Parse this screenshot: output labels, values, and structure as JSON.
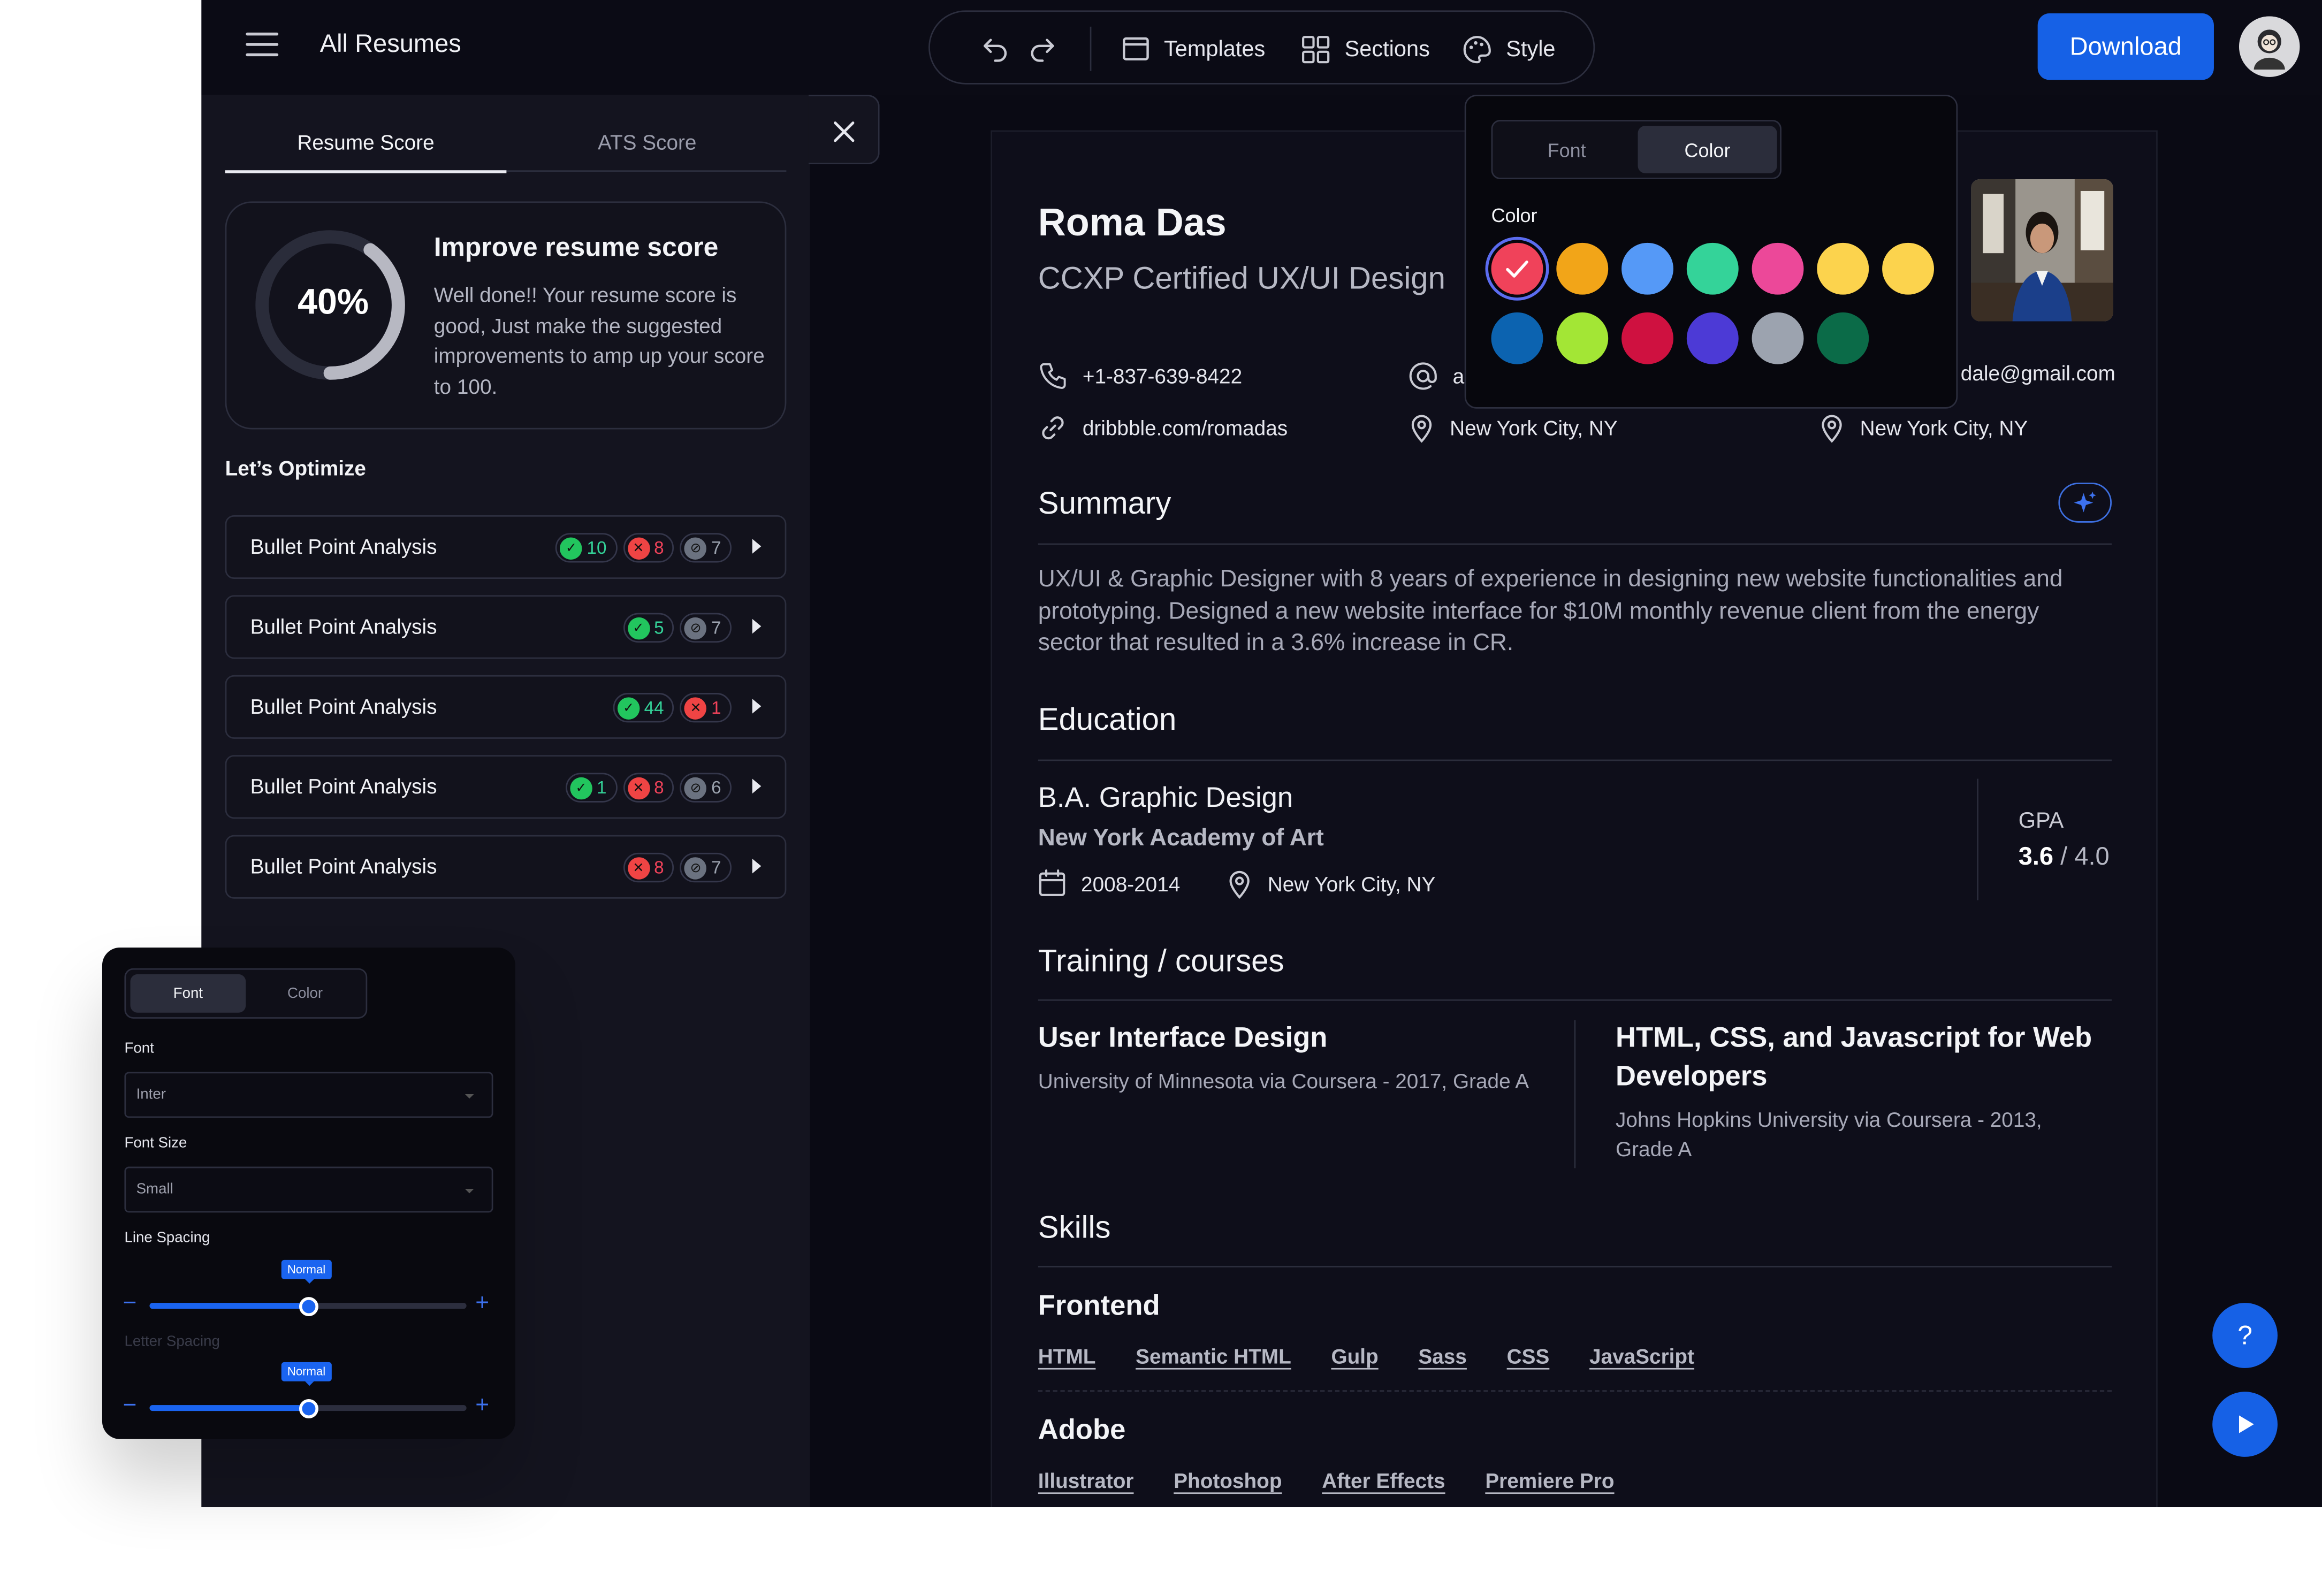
{
  "header": {
    "title": "All Resumes",
    "toolbar": {
      "templates": "Templates",
      "sections": "Sections",
      "style": "Style"
    },
    "download_label": "Download"
  },
  "left_panel": {
    "tabs": [
      "Resume Score",
      "ATS Score"
    ],
    "active_tab": "Resume Score",
    "score": {
      "percent_label": "40%",
      "value": 0.4,
      "title": "Improve resume score",
      "description": "Well done!! Your resume score is good, Just make the suggested improvements to amp up your score to 100."
    },
    "optimize_label": "Let’s Optimize",
    "analyses": [
      {
        "label": "Bullet Point Analysis",
        "badges": [
          {
            "type": "check",
            "count": "10"
          },
          {
            "type": "cross",
            "count": "8"
          },
          {
            "type": "block",
            "count": "7"
          }
        ]
      },
      {
        "label": "Bullet Point Analysis",
        "badges": [
          {
            "type": "check",
            "count": "5"
          },
          {
            "type": "block",
            "count": "7"
          }
        ]
      },
      {
        "label": "Bullet Point Analysis",
        "badges": [
          {
            "type": "check",
            "count": "44"
          },
          {
            "type": "cross",
            "count": "1"
          }
        ]
      },
      {
        "label": "Bullet Point Analysis",
        "badges": [
          {
            "type": "check",
            "count": "1"
          },
          {
            "type": "cross",
            "count": "8"
          },
          {
            "type": "block",
            "count": "6"
          }
        ]
      },
      {
        "label": "Bullet Point Analysis",
        "badges": [
          {
            "type": "cross",
            "count": "8"
          },
          {
            "type": "block",
            "count": "7"
          }
        ]
      }
    ]
  },
  "resume": {
    "name": "Roma Das",
    "role": "CCXP Certified UX/UI Design",
    "contacts": {
      "phone": "+1-837-639-8422",
      "email_left": "al",
      "email_right": "dale@gmail.com",
      "website": "dribbble.com/romadas",
      "location_1": "New York City, NY",
      "location_2": "New York City, NY"
    },
    "summary_heading": "Summary",
    "summary_text": "UX/UI & Graphic Designer with 8 years of experience in designing new website functionalities and prototyping. Designed a new website interface for $10M monthly revenue client from the energy sector that resulted in a 3.6% increase in CR.",
    "education_heading": "Education",
    "education": {
      "degree": "B.A. Graphic Design",
      "school": "New York Academy of Art",
      "years": "2008-2014",
      "location": "New York City, NY",
      "gpa_label": "GPA",
      "gpa_value": "3.6",
      "gpa_max": " / 4.0"
    },
    "training_heading": "Training / courses",
    "courses": [
      {
        "title": "User Interface Design",
        "detail": "University of Minnesota via Coursera - 2017, Grade A"
      },
      {
        "title": "HTML, CSS, and Javascript for Web Developers",
        "detail": "Johns Hopkins University via Coursera - 2013, Grade A"
      }
    ],
    "skills_heading": "Skills",
    "skill_groups": [
      {
        "name": "Frontend",
        "items": [
          "HTML",
          "Semantic HTML",
          "Gulp",
          "Sass",
          "CSS",
          "JavaScript"
        ]
      },
      {
        "name": "Adobe",
        "items": [
          "Illustrator",
          "Photoshop",
          "After Effects",
          "Premiere Pro"
        ]
      }
    ]
  },
  "color_popover": {
    "tabs": [
      "Font",
      "Color"
    ],
    "active_tab": "Color",
    "label": "Color",
    "swatches": [
      "#f0425a",
      "#f2a518",
      "#5599f7",
      "#34d399",
      "#ec4899",
      "#fcd34d",
      "#fcd34d",
      "#0c63b0",
      "#a3e635",
      "#cf1140",
      "#4c3ad6",
      "#9ca3af",
      "#0b6b48"
    ],
    "selected_index": 0
  },
  "font_popover": {
    "tabs": [
      "Font",
      "Color"
    ],
    "active_tab": "Font",
    "font_label": "Font",
    "font_value": "Inter",
    "size_label": "Font Size",
    "size_value": "Small",
    "line_spacing_label": "Line Spacing",
    "line_spacing_tip": "Normal",
    "line_spacing_level": 0.5,
    "letter_spacing_label": "Letter Spacing",
    "letter_spacing_tip": "Normal",
    "letter_spacing_level": 0.5
  },
  "colors": {
    "accent": "#1661e6",
    "check": "#22c55e",
    "cross": "#ef4444",
    "block": "#6b7280"
  },
  "icons": [
    "menu-icon",
    "undo-icon",
    "redo-icon",
    "template-icon",
    "sections-icon",
    "palette-icon",
    "close-icon",
    "phone-icon",
    "at-icon",
    "link-icon",
    "pin-icon",
    "calendar-icon",
    "sparkle-icon",
    "help-icon",
    "play-icon"
  ]
}
